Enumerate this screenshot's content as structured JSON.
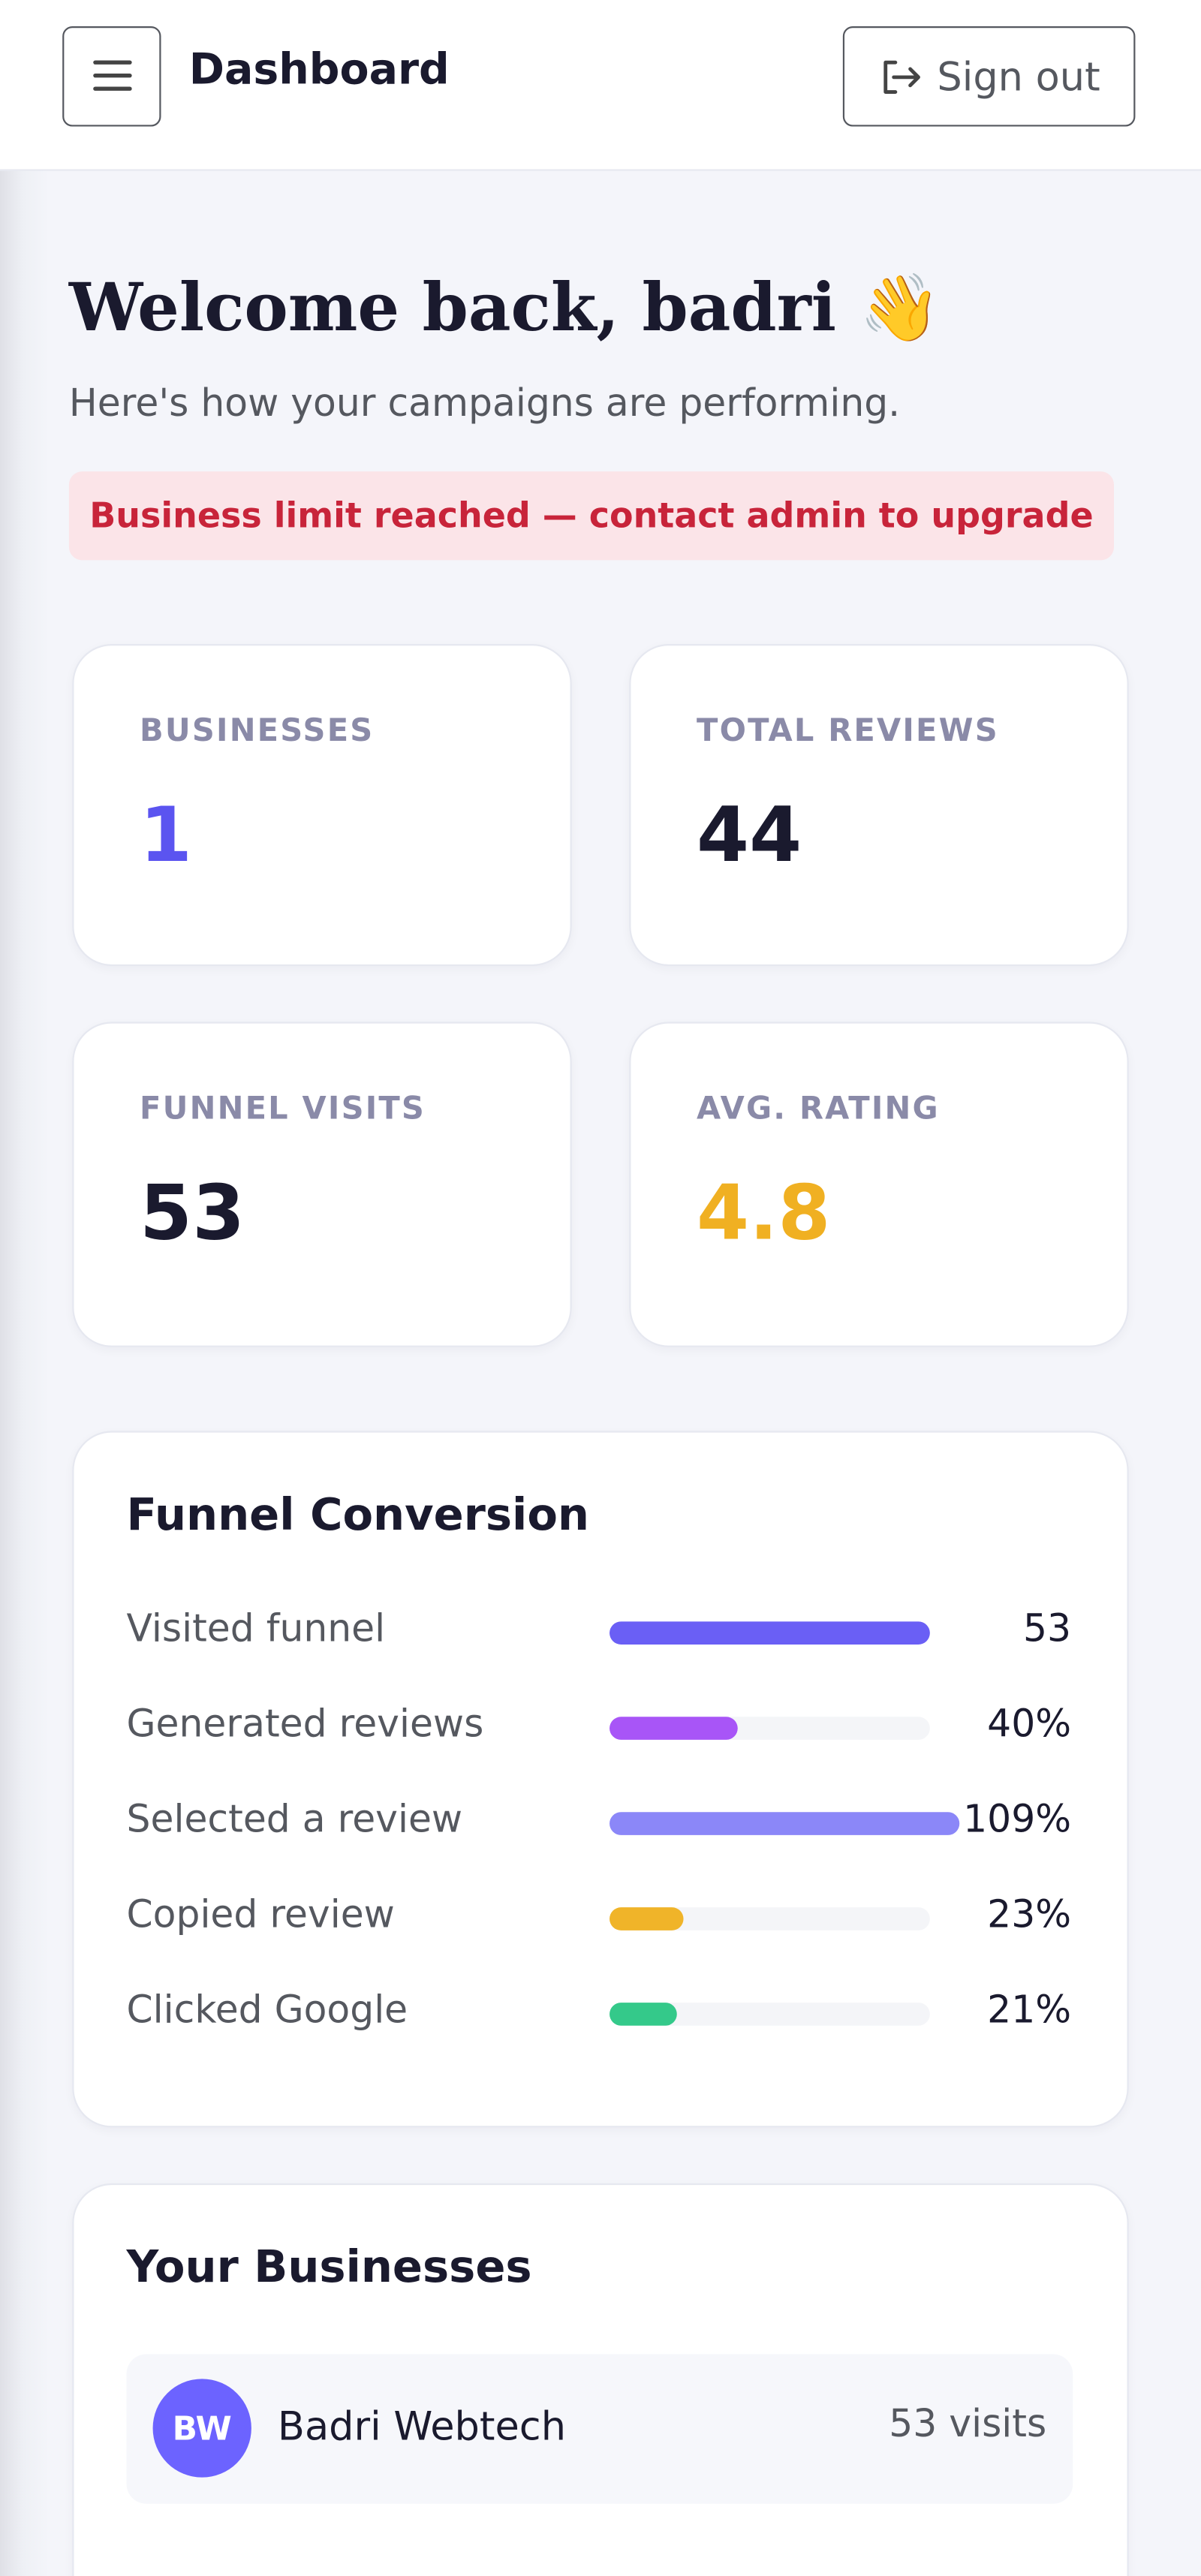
{
  "header": {
    "title": "Dashboard",
    "sign_out": "Sign out"
  },
  "welcome": {
    "title": "Welcome back, badri 👋",
    "subtitle": "Here's how your campaigns are performing.",
    "alert": "Business limit reached — contact admin to upgrade"
  },
  "stats": [
    {
      "label": "BUSINESSES",
      "value": 1,
      "color": "#5b54f0"
    },
    {
      "label": "TOTAL REVIEWS",
      "value": 44,
      "color": "#1a1a2e"
    },
    {
      "label": "FUNNEL VISITS",
      "value": 53,
      "color": "#1a1a2e"
    },
    {
      "label": "AVG. RATING",
      "value": 4.8,
      "color": "#f0b022"
    }
  ],
  "funnel": {
    "title": "Funnel Conversion",
    "rows": [
      {
        "label": "Visited funnel",
        "value": 53,
        "color": "#6a5ff5"
      },
      {
        "label": "Generated reviews",
        "value": 40,
        "value_label": "40%",
        "color": "#a855f7"
      },
      {
        "label": "Selected a review",
        "value": 109,
        "value_label": "109%",
        "color": "#8b87f8"
      },
      {
        "label": "Copied review",
        "value": 23,
        "value_label": "23%",
        "color": "#f0b429"
      },
      {
        "label": "Clicked Google",
        "value": 21,
        "value_label": "21%",
        "color": "#34c98a"
      }
    ]
  },
  "businesses": {
    "title": "Your Businesses",
    "items": [
      {
        "initials": "BW",
        "name": "Badri Webtech",
        "visits": "53 visits"
      }
    ]
  }
}
